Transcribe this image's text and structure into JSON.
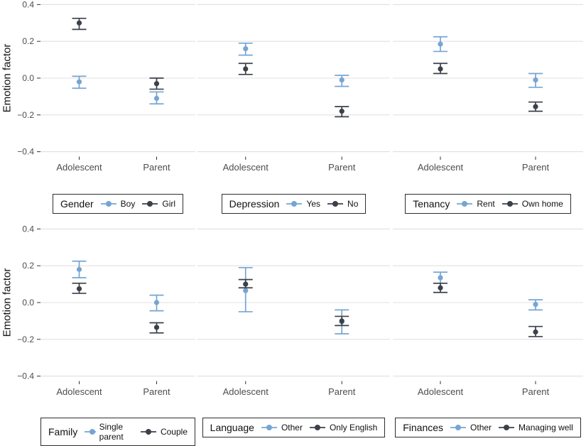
{
  "colors": {
    "blue": "#76a5d3",
    "dark": "#3b4049",
    "grid": "#e0e0e0",
    "axis_text": "#4d4d4d",
    "tick": "#333333",
    "title_text": "#111111",
    "legend_border": "#2e2e2e",
    "background": "#ffffff"
  },
  "chart_data": {
    "type": "pointrange",
    "ylabel": "Emotion factor",
    "x_categories": [
      "Adolescent",
      "Parent"
    ],
    "yticks": [
      0.4,
      0.2,
      0.0,
      -0.2,
      -0.4
    ],
    "ytick_labels": [
      "0.4",
      "0.2",
      "0.0",
      "−0.2",
      "−0.4"
    ],
    "ylim": [
      -0.425,
      0.425
    ],
    "grid": true,
    "legend_position": "bottom",
    "panels": [
      {
        "legend_title": "Gender",
        "series": [
          {
            "name": "Boy",
            "color": "blue",
            "points": [
              {
                "x": "Adolescent",
                "y": -0.02,
                "ymin": -0.055,
                "ymax": 0.01
              },
              {
                "x": "Parent",
                "y": -0.11,
                "ymin": -0.14,
                "ymax": -0.075
              }
            ]
          },
          {
            "name": "Girl",
            "color": "dark",
            "points": [
              {
                "x": "Adolescent",
                "y": 0.3,
                "ymin": 0.265,
                "ymax": 0.325
              },
              {
                "x": "Parent",
                "y": -0.03,
                "ymin": -0.06,
                "ymax": 0.0
              }
            ]
          }
        ]
      },
      {
        "legend_title": "Depression",
        "series": [
          {
            "name": "Yes",
            "color": "blue",
            "points": [
              {
                "x": "Adolescent",
                "y": 0.16,
                "ymin": 0.125,
                "ymax": 0.19
              },
              {
                "x": "Parent",
                "y": -0.01,
                "ymin": -0.045,
                "ymax": 0.015
              }
            ]
          },
          {
            "name": "No",
            "color": "dark",
            "points": [
              {
                "x": "Adolescent",
                "y": 0.05,
                "ymin": 0.02,
                "ymax": 0.08
              },
              {
                "x": "Parent",
                "y": -0.18,
                "ymin": -0.21,
                "ymax": -0.155
              }
            ]
          }
        ]
      },
      {
        "legend_title": "Tenancy",
        "series": [
          {
            "name": "Rent",
            "color": "blue",
            "points": [
              {
                "x": "Adolescent",
                "y": 0.185,
                "ymin": 0.145,
                "ymax": 0.225
              },
              {
                "x": "Parent",
                "y": -0.01,
                "ymin": -0.05,
                "ymax": 0.025
              }
            ]
          },
          {
            "name": "Own home",
            "color": "dark",
            "points": [
              {
                "x": "Adolescent",
                "y": 0.05,
                "ymin": 0.025,
                "ymax": 0.08
              },
              {
                "x": "Parent",
                "y": -0.155,
                "ymin": -0.18,
                "ymax": -0.13
              }
            ]
          }
        ]
      },
      {
        "legend_title": "Family",
        "series": [
          {
            "name": "Single parent",
            "color": "blue",
            "points": [
              {
                "x": "Adolescent",
                "y": 0.18,
                "ymin": 0.135,
                "ymax": 0.225
              },
              {
                "x": "Parent",
                "y": 0.0,
                "ymin": -0.045,
                "ymax": 0.04
              }
            ]
          },
          {
            "name": "Couple",
            "color": "dark",
            "points": [
              {
                "x": "Adolescent",
                "y": 0.075,
                "ymin": 0.05,
                "ymax": 0.105
              },
              {
                "x": "Parent",
                "y": -0.135,
                "ymin": -0.165,
                "ymax": -0.11
              }
            ]
          }
        ]
      },
      {
        "legend_title": "Language",
        "series": [
          {
            "name": "Other",
            "color": "blue",
            "points": [
              {
                "x": "Adolescent",
                "y": 0.065,
                "ymin": -0.05,
                "ymax": 0.19
              },
              {
                "x": "Parent",
                "y": -0.105,
                "ymin": -0.17,
                "ymax": -0.04
              }
            ]
          },
          {
            "name": "Only English",
            "color": "dark",
            "points": [
              {
                "x": "Adolescent",
                "y": 0.1,
                "ymin": 0.08,
                "ymax": 0.125
              },
              {
                "x": "Parent",
                "y": -0.1,
                "ymin": -0.125,
                "ymax": -0.075
              }
            ]
          }
        ]
      },
      {
        "legend_title": "Finances",
        "series": [
          {
            "name": "Other",
            "color": "blue",
            "points": [
              {
                "x": "Adolescent",
                "y": 0.135,
                "ymin": 0.105,
                "ymax": 0.165
              },
              {
                "x": "Parent",
                "y": -0.01,
                "ymin": -0.04,
                "ymax": 0.015
              }
            ]
          },
          {
            "name": "Managing well",
            "color": "dark",
            "points": [
              {
                "x": "Adolescent",
                "y": 0.08,
                "ymin": 0.055,
                "ymax": 0.105
              },
              {
                "x": "Parent",
                "y": -0.16,
                "ymin": -0.185,
                "ymax": -0.13
              }
            ]
          }
        ]
      }
    ]
  }
}
